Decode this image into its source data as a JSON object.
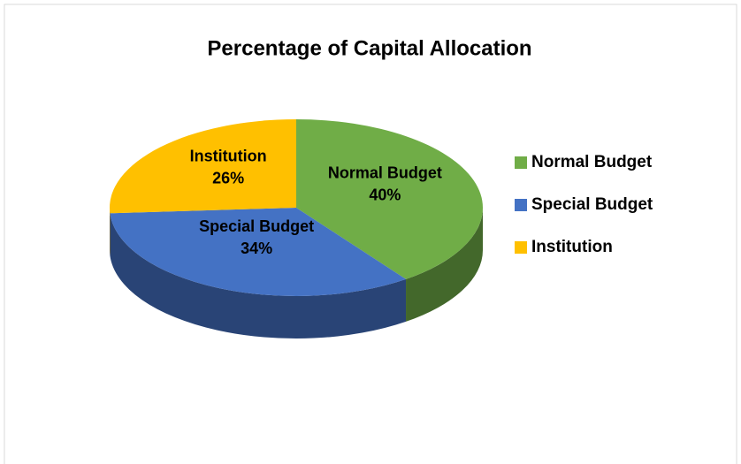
{
  "chart_data": {
    "type": "pie",
    "title": "Percentage of Capital Allocation",
    "categories": [
      "Normal Budget",
      "Special Budget",
      "Institution"
    ],
    "values": [
      40,
      34,
      26
    ],
    "value_labels": [
      "40%",
      "34%",
      "26%"
    ],
    "colors": [
      "#70ad47",
      "#4472c4",
      "#ffc000"
    ],
    "legend": "right"
  }
}
